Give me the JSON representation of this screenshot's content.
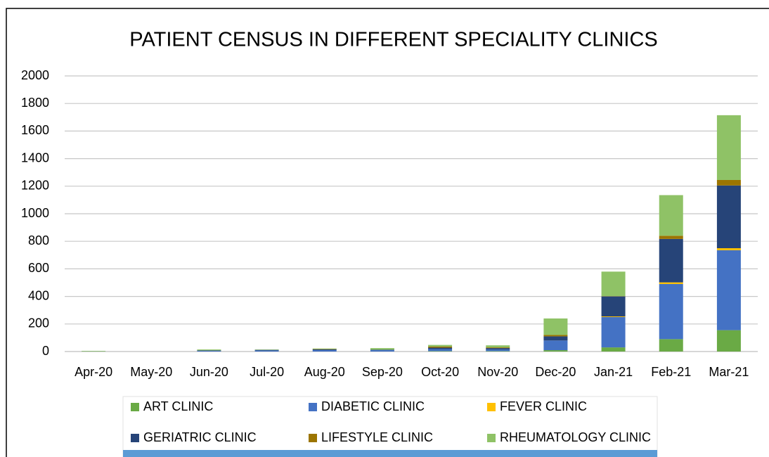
{
  "chart_data": {
    "type": "stacked_bar",
    "title": "PATIENT CENSUS IN DIFFERENT SPECIALITY CLINICS",
    "categories": [
      "Apr-20",
      "May-20",
      "Jun-20",
      "Jul-20",
      "Aug-20",
      "Sep-20",
      "Oct-20",
      "Nov-20",
      "Dec-20",
      "Jan-21",
      "Feb-21",
      "Mar-21"
    ],
    "series": [
      {
        "name": "ART CLINIC",
        "color": "#6aaa45",
        "values": [
          0,
          0,
          0,
          0,
          0,
          0,
          3,
          3,
          10,
          30,
          90,
          155
        ]
      },
      {
        "name": "DIABETIC CLINIC",
        "color": "#4472c4",
        "values": [
          1,
          0,
          5,
          8,
          10,
          10,
          15,
          12,
          70,
          220,
          400,
          580
        ]
      },
      {
        "name": "FEVER CLINIC",
        "color": "#ffc000",
        "values": [
          0,
          0,
          0,
          0,
          0,
          0,
          0,
          0,
          0,
          5,
          12,
          15
        ]
      },
      {
        "name": "GERIATRIC CLINIC",
        "color": "#264478",
        "values": [
          0,
          0,
          3,
          4,
          6,
          3,
          10,
          10,
          30,
          145,
          315,
          455
        ]
      },
      {
        "name": "LIFESTYLE CLINIC",
        "color": "#9c7500",
        "values": [
          0,
          0,
          0,
          0,
          2,
          0,
          8,
          5,
          10,
          2,
          23,
          40
        ]
      },
      {
        "name": "RHEUMATOLOGY CLINIC",
        "color": "#8fc266",
        "values": [
          4,
          0,
          7,
          3,
          4,
          12,
          12,
          15,
          120,
          178,
          295,
          470
        ]
      }
    ],
    "ylim": [
      0,
      2000
    ],
    "yticks": [
      0,
      200,
      400,
      600,
      800,
      1000,
      1200,
      1400,
      1600,
      1800,
      2000
    ],
    "grid": true,
    "legend": "bottom"
  }
}
